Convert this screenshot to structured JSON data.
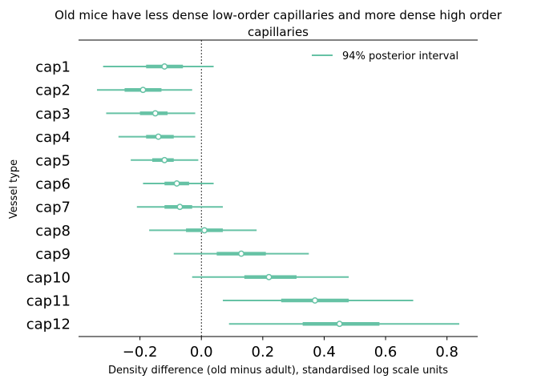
{
  "chart_data": {
    "type": "forest",
    "title": "Old mice have less dense low-order capillaries and more dense high order capillaries",
    "xlabel": "Density difference (old minus adult), standardised log scale units",
    "ylabel": "Vessel type",
    "xlim": [
      -0.4,
      0.9
    ],
    "xticks": [
      -0.2,
      0.0,
      0.2,
      0.4,
      0.6,
      0.8
    ],
    "xtick_labels": [
      "−0.2",
      "0.0",
      "0.2",
      "0.4",
      "0.6",
      "0.8"
    ],
    "reference_line": 0.0,
    "legend": {
      "label": "94% posterior interval",
      "placement": "top-right"
    },
    "color": "#66c2a5",
    "categories": [
      "cap1",
      "cap2",
      "cap3",
      "cap4",
      "cap5",
      "cap6",
      "cap7",
      "cap8",
      "cap9",
      "cap10",
      "cap11",
      "cap12"
    ],
    "intervals": [
      {
        "name": "cap1",
        "median": -0.12,
        "q25": -0.18,
        "q75": -0.06,
        "low": -0.32,
        "high": 0.04
      },
      {
        "name": "cap2",
        "median": -0.19,
        "q25": -0.25,
        "q75": -0.13,
        "low": -0.34,
        "high": -0.03
      },
      {
        "name": "cap3",
        "median": -0.15,
        "q25": -0.2,
        "q75": -0.11,
        "low": -0.31,
        "high": -0.02
      },
      {
        "name": "cap4",
        "median": -0.14,
        "q25": -0.18,
        "q75": -0.09,
        "low": -0.27,
        "high": -0.02
      },
      {
        "name": "cap5",
        "median": -0.12,
        "q25": -0.16,
        "q75": -0.09,
        "low": -0.23,
        "high": -0.01
      },
      {
        "name": "cap6",
        "median": -0.08,
        "q25": -0.12,
        "q75": -0.04,
        "low": -0.19,
        "high": 0.04
      },
      {
        "name": "cap7",
        "median": -0.07,
        "q25": -0.12,
        "q75": -0.03,
        "low": -0.21,
        "high": 0.07
      },
      {
        "name": "cap8",
        "median": 0.01,
        "q25": -0.05,
        "q75": 0.07,
        "low": -0.17,
        "high": 0.18
      },
      {
        "name": "cap9",
        "median": 0.13,
        "q25": 0.05,
        "q75": 0.21,
        "low": -0.09,
        "high": 0.35
      },
      {
        "name": "cap10",
        "median": 0.22,
        "q25": 0.14,
        "q75": 0.31,
        "low": -0.03,
        "high": 0.48
      },
      {
        "name": "cap11",
        "median": 0.37,
        "q25": 0.26,
        "q75": 0.48,
        "low": 0.07,
        "high": 0.69
      },
      {
        "name": "cap12",
        "median": 0.45,
        "q25": 0.33,
        "q75": 0.58,
        "low": 0.09,
        "high": 0.84
      }
    ]
  }
}
